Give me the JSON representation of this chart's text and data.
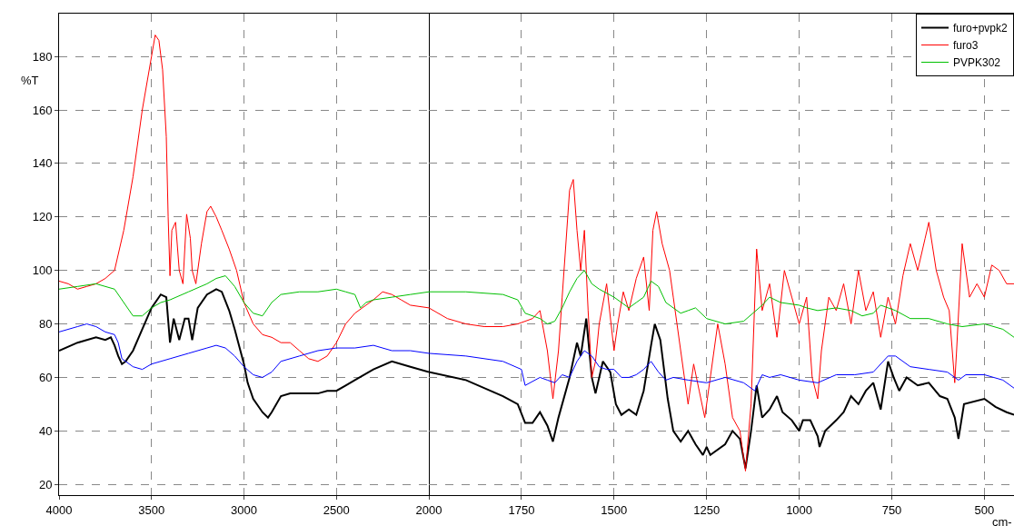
{
  "chart_data": [
    {
      "type": "line",
      "ylabel": "%T",
      "xlim": [
        4000,
        2000
      ],
      "xticks": [
        4000,
        3500,
        3000,
        2500,
        2000
      ],
      "ylim": [
        16,
        196
      ],
      "yticks": [
        20,
        40,
        60,
        80,
        100,
        120,
        140,
        160,
        180
      ],
      "grid": true,
      "tick_labels": "xy",
      "series": [
        {
          "color": "#000000",
          "x": [
            4000,
            3900,
            3800,
            3750,
            3720,
            3700,
            3680,
            3660,
            3640,
            3600,
            3550,
            3500,
            3450,
            3420,
            3400,
            3380,
            3350,
            3320,
            3300,
            3280,
            3250,
            3200,
            3150,
            3120,
            3080,
            3050,
            3000,
            2980,
            2950,
            2900,
            2870,
            2850,
            2800,
            2750,
            2700,
            2600,
            2550,
            2500,
            2450,
            2400,
            2300,
            2200,
            2100,
            2000
          ],
          "values": [
            70,
            73,
            75,
            74,
            75,
            72,
            68,
            65,
            66,
            70,
            78,
            86,
            91,
            90,
            73,
            82,
            74,
            82,
            82,
            74,
            86,
            91,
            93,
            92,
            85,
            78,
            65,
            58,
            52,
            47,
            45,
            47,
            53,
            54,
            54,
            54,
            55,
            55,
            57,
            59,
            63,
            66,
            64,
            62
          ]
        },
        {
          "color": "#ff0000",
          "x": [
            4000,
            3950,
            3900,
            3850,
            3800,
            3750,
            3700,
            3650,
            3600,
            3550,
            3500,
            3480,
            3460,
            3440,
            3420,
            3410,
            3400,
            3390,
            3370,
            3350,
            3330,
            3310,
            3290,
            3280,
            3260,
            3230,
            3200,
            3180,
            3150,
            3120,
            3080,
            3040,
            3000,
            2950,
            2900,
            2850,
            2800,
            2750,
            2700,
            2650,
            2600,
            2550,
            2500,
            2450,
            2400,
            2300,
            2250,
            2200,
            2150,
            2100,
            2000
          ],
          "values": [
            96,
            95,
            93,
            94,
            95,
            97,
            100,
            115,
            135,
            160,
            180,
            188,
            186,
            175,
            150,
            120,
            98,
            115,
            118,
            100,
            95,
            121,
            112,
            100,
            95,
            110,
            122,
            124,
            120,
            115,
            108,
            100,
            88,
            80,
            76,
            75,
            73,
            73,
            70,
            67,
            66,
            68,
            73,
            80,
            84,
            89,
            92,
            91,
            89,
            87,
            86
          ]
        },
        {
          "color": "#00c000",
          "x": [
            4000,
            3900,
            3800,
            3700,
            3650,
            3600,
            3550,
            3500,
            3450,
            3400,
            3300,
            3200,
            3150,
            3100,
            3050,
            3000,
            2950,
            2900,
            2850,
            2800,
            2700,
            2600,
            2500,
            2450,
            2400,
            2370,
            2340,
            2300,
            2200,
            2100,
            2000
          ],
          "values": [
            93,
            94,
            95,
            93,
            88,
            83,
            83,
            86,
            88,
            89,
            92,
            95,
            97,
            98,
            94,
            88,
            84,
            83,
            88,
            91,
            92,
            92,
            93,
            92,
            91,
            86,
            88,
            89,
            90,
            91,
            92
          ]
        },
        {
          "color": "#0000ff",
          "x": [
            4000,
            3900,
            3850,
            3800,
            3750,
            3700,
            3680,
            3660,
            3640,
            3600,
            3550,
            3500,
            3400,
            3300,
            3200,
            3150,
            3100,
            3050,
            3000,
            2950,
            2900,
            2850,
            2800,
            2700,
            2600,
            2500,
            2400,
            2300,
            2200,
            2100,
            2000
          ],
          "values": [
            77,
            79,
            80,
            79,
            77,
            76,
            73,
            67,
            66,
            64,
            63,
            65,
            67,
            69,
            71,
            72,
            71,
            68,
            64,
            61,
            60,
            62,
            66,
            68,
            70,
            71,
            71,
            72,
            70,
            70,
            69
          ]
        }
      ]
    },
    {
      "type": "line",
      "xlabel": "cm-",
      "xlim": [
        2000,
        420
      ],
      "xticks": [
        1750,
        1500,
        1250,
        1000,
        750,
        500
      ],
      "ylim": [
        16,
        196
      ],
      "yticks": [
        20,
        40,
        60,
        80,
        100,
        120,
        140,
        160,
        180
      ],
      "grid": true,
      "tick_labels": "x",
      "legend": "top right",
      "series": [
        {
          "name": "furo+pvpk2",
          "color": "#000000",
          "x": [
            2000,
            1900,
            1800,
            1760,
            1740,
            1720,
            1700,
            1680,
            1665,
            1650,
            1620,
            1600,
            1590,
            1575,
            1560,
            1550,
            1530,
            1510,
            1495,
            1480,
            1460,
            1440,
            1420,
            1400,
            1390,
            1375,
            1355,
            1340,
            1320,
            1300,
            1280,
            1260,
            1250,
            1240,
            1200,
            1180,
            1160,
            1145,
            1130,
            1115,
            1100,
            1080,
            1060,
            1045,
            1020,
            1000,
            990,
            970,
            950,
            945,
            930,
            900,
            880,
            860,
            840,
            820,
            800,
            780,
            760,
            745,
            730,
            710,
            680,
            650,
            620,
            600,
            580,
            570,
            555,
            500,
            470,
            440,
            420
          ],
          "values": [
            62,
            59,
            53,
            50,
            43,
            43,
            47,
            42,
            36,
            45,
            60,
            73,
            68,
            82,
            60,
            54,
            66,
            62,
            50,
            46,
            48,
            46,
            55,
            72,
            80,
            74,
            52,
            40,
            36,
            40,
            35,
            31,
            34,
            31,
            35,
            40,
            37,
            26,
            40,
            57,
            45,
            48,
            53,
            47,
            44,
            40,
            44,
            44,
            38,
            34,
            40,
            44,
            47,
            53,
            50,
            55,
            58,
            48,
            66,
            60,
            55,
            60,
            57,
            58,
            53,
            52,
            45,
            37,
            50,
            52,
            49,
            47,
            46
          ]
        },
        {
          "name": "furo3",
          "color": "#ff0000",
          "x": [
            2000,
            1950,
            1900,
            1850,
            1800,
            1760,
            1720,
            1700,
            1680,
            1665,
            1650,
            1640,
            1620,
            1610,
            1600,
            1590,
            1580,
            1570,
            1560,
            1550,
            1540,
            1520,
            1500,
            1490,
            1475,
            1460,
            1440,
            1420,
            1405,
            1395,
            1385,
            1370,
            1350,
            1340,
            1320,
            1300,
            1285,
            1270,
            1255,
            1240,
            1220,
            1200,
            1180,
            1160,
            1145,
            1130,
            1115,
            1100,
            1080,
            1060,
            1040,
            1020,
            1000,
            980,
            965,
            950,
            940,
            920,
            900,
            880,
            860,
            840,
            820,
            800,
            780,
            760,
            740,
            720,
            700,
            680,
            660,
            650,
            630,
            610,
            595,
            580,
            575,
            560,
            540,
            520,
            500,
            480,
            460,
            440,
            420
          ],
          "values": [
            86,
            82,
            80,
            79,
            79,
            80,
            82,
            85,
            70,
            52,
            70,
            90,
            130,
            134,
            115,
            100,
            115,
            85,
            60,
            66,
            80,
            95,
            70,
            80,
            92,
            85,
            97,
            105,
            85,
            115,
            122,
            110,
            100,
            90,
            70,
            50,
            65,
            55,
            45,
            60,
            80,
            65,
            45,
            40,
            25,
            50,
            108,
            85,
            95,
            75,
            100,
            90,
            80,
            90,
            60,
            52,
            70,
            90,
            85,
            95,
            80,
            100,
            85,
            92,
            75,
            90,
            80,
            98,
            110,
            100,
            112,
            118,
            100,
            90,
            85,
            58,
            70,
            110,
            90,
            95,
            90,
            102,
            100,
            95,
            95
          ]
        },
        {
          "name": "PVPK302",
          "color": "#00c000",
          "x": [
            2000,
            1900,
            1800,
            1760,
            1740,
            1700,
            1680,
            1660,
            1640,
            1620,
            1600,
            1580,
            1560,
            1540,
            1500,
            1480,
            1460,
            1440,
            1420,
            1400,
            1380,
            1360,
            1320,
            1300,
            1280,
            1250,
            1200,
            1150,
            1100,
            1080,
            1050,
            1000,
            980,
            950,
            900,
            860,
            830,
            800,
            780,
            760,
            740,
            700,
            650,
            600,
            560,
            500,
            450,
            420
          ],
          "values": [
            92,
            92,
            91,
            89,
            84,
            82,
            80,
            81,
            86,
            92,
            97,
            100,
            95,
            93,
            90,
            88,
            86,
            88,
            90,
            96,
            94,
            88,
            84,
            85,
            86,
            82,
            80,
            81,
            87,
            90,
            88,
            87,
            86,
            85,
            86,
            85,
            83,
            84,
            87,
            86,
            85,
            82,
            82,
            80,
            79,
            80,
            78,
            75
          ]
        },
        {
          "color": "#0000ff",
          "x": [
            2000,
            1900,
            1800,
            1750,
            1740,
            1700,
            1680,
            1660,
            1640,
            1620,
            1600,
            1580,
            1560,
            1540,
            1520,
            1500,
            1480,
            1460,
            1440,
            1420,
            1400,
            1380,
            1360,
            1340,
            1300,
            1250,
            1200,
            1150,
            1120,
            1100,
            1080,
            1050,
            1000,
            950,
            900,
            850,
            800,
            760,
            740,
            700,
            650,
            600,
            570,
            550,
            500,
            450,
            420
          ],
          "values": [
            69,
            68,
            66,
            63,
            57,
            60,
            59,
            58,
            61,
            60,
            66,
            70,
            68,
            64,
            63,
            63,
            60,
            60,
            61,
            63,
            66,
            62,
            59,
            60,
            59,
            58,
            60,
            58,
            55,
            61,
            60,
            61,
            59,
            58,
            61,
            61,
            62,
            68,
            68,
            64,
            63,
            62,
            59,
            61,
            61,
            59,
            56
          ]
        }
      ]
    }
  ]
}
